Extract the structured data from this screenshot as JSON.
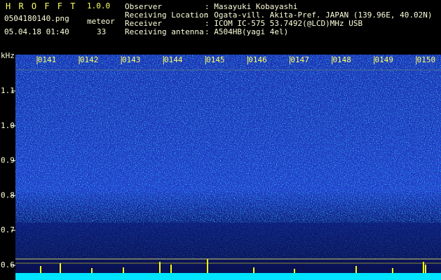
{
  "app": {
    "name": "H R O F F T",
    "version": "1.0.0",
    "file": "0504180140.png",
    "count_label": "meteor",
    "datetime": "05.04.18 01:40",
    "count": 33
  },
  "station": [
    {
      "label": "Observer",
      "value": ": Masayuki Kobayashi"
    },
    {
      "label": "Receiving Location",
      "value": ": Ogata-vill. Akita-Pref. JAPAN (139.96E, 40.02N)"
    },
    {
      "label": "Receiver",
      "value": ": ICOM IC-575 53.7492(@LCD)MHz USB"
    },
    {
      "label": "Receiving antenna",
      "value": ": A504HB(yagi 4el)"
    }
  ],
  "spectrogram": {
    "y_unit": "kHz",
    "y_labels": [
      "1.1",
      "1.0",
      "0.9",
      "0.8",
      "0.7",
      "0.6"
    ],
    "time_labels": [
      "0141",
      "0142",
      "0143",
      "0144",
      "0145",
      "0146",
      "0147",
      "0148",
      "0149",
      "0150"
    ]
  }
}
